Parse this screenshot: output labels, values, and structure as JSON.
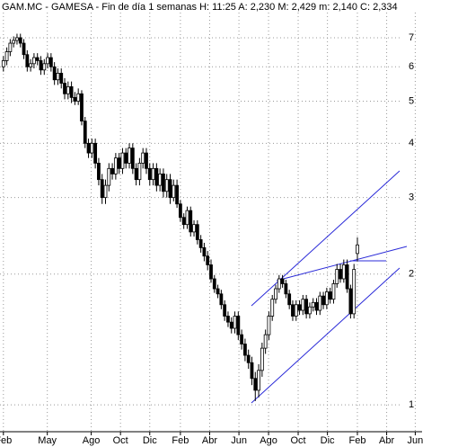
{
  "chart_data": {
    "type": "candlestick",
    "title": "GAM.MC - GAMESA - Fin de día 1 semanas  H: 11:25  A: 2,230  M: 2,429  m: 2,140  C: 2,334",
    "open": [
      6.0,
      6.2,
      6.5,
      6.8,
      6.9,
      7.0,
      6.8,
      6.4,
      6.0,
      6.1,
      6.3,
      6.2,
      5.9,
      6.1,
      6.3,
      6.0,
      5.6,
      5.8,
      5.5,
      5.2,
      5.4,
      5.1,
      5.0,
      5.2,
      4.5,
      4.0,
      3.8,
      4.0,
      3.6,
      3.3,
      3.0,
      3.2,
      3.5,
      3.4,
      3.7,
      3.5,
      3.8,
      3.6,
      3.9,
      3.5,
      3.3,
      3.6,
      3.8,
      3.5,
      3.3,
      3.5,
      3.2,
      3.4,
      3.1,
      3.3,
      3.0,
      3.2,
      2.9,
      2.7,
      2.6,
      2.8,
      2.5,
      2.6,
      2.4,
      2.3,
      2.2,
      2.1,
      1.95,
      1.85,
      1.8,
      1.7,
      1.6,
      1.55,
      1.5,
      1.6,
      1.45,
      1.38,
      1.3,
      1.25,
      1.15,
      1.08,
      1.2,
      1.35,
      1.45,
      1.6,
      1.75,
      1.85,
      1.95,
      1.9,
      1.8,
      1.7,
      1.6,
      1.7,
      1.65,
      1.75,
      1.62,
      1.68,
      1.72,
      1.65,
      1.78,
      1.7,
      1.82,
      1.75,
      1.9,
      2.05,
      1.95,
      2.1,
      1.85,
      1.62,
      2.23
    ],
    "high": [
      6.35,
      6.65,
      6.95,
      7.05,
      7.15,
      7.15,
      6.95,
      6.55,
      6.25,
      6.45,
      6.45,
      6.35,
      6.25,
      6.45,
      6.45,
      6.15,
      5.95,
      5.95,
      5.65,
      5.55,
      5.55,
      5.25,
      5.35,
      5.3,
      4.6,
      4.1,
      4.1,
      4.1,
      3.7,
      3.4,
      3.3,
      3.6,
      3.6,
      3.8,
      3.8,
      3.9,
      3.9,
      4.0,
      4.0,
      3.6,
      3.7,
      3.9,
      3.9,
      3.6,
      3.6,
      3.6,
      3.5,
      3.5,
      3.4,
      3.4,
      3.3,
      3.3,
      2.96,
      2.76,
      2.86,
      2.86,
      2.66,
      2.66,
      2.46,
      2.36,
      2.26,
      2.16,
      1.99,
      1.89,
      1.84,
      1.74,
      1.64,
      1.59,
      1.64,
      1.64,
      1.49,
      1.42,
      1.34,
      1.29,
      1.19,
      1.24,
      1.39,
      1.49,
      1.64,
      1.79,
      1.89,
      1.99,
      1.99,
      1.94,
      1.84,
      1.74,
      1.74,
      1.74,
      1.79,
      1.79,
      1.72,
      1.76,
      1.76,
      1.82,
      1.82,
      1.86,
      1.86,
      1.94,
      2.11,
      2.11,
      2.16,
      2.16,
      1.89,
      2.11,
      2.429
    ],
    "low": [
      5.85,
      6.05,
      6.35,
      6.65,
      6.75,
      6.65,
      6.25,
      5.85,
      5.85,
      5.95,
      6.05,
      5.75,
      5.75,
      5.95,
      5.85,
      5.45,
      5.45,
      5.35,
      5.05,
      5.05,
      4.95,
      4.9,
      4.9,
      4.4,
      3.9,
      3.7,
      3.7,
      3.5,
      3.2,
      2.9,
      2.9,
      3.1,
      3.3,
      3.3,
      3.4,
      3.4,
      3.5,
      3.5,
      3.4,
      3.2,
      3.2,
      3.5,
      3.4,
      3.2,
      3.2,
      3.1,
      3.1,
      3.0,
      3.0,
      2.9,
      2.94,
      2.84,
      2.64,
      2.54,
      2.54,
      2.44,
      2.44,
      2.34,
      2.24,
      2.14,
      2.04,
      1.91,
      1.81,
      1.76,
      1.66,
      1.56,
      1.51,
      1.46,
      1.46,
      1.41,
      1.34,
      1.26,
      1.21,
      1.11,
      1.02,
      1.04,
      1.16,
      1.31,
      1.41,
      1.56,
      1.71,
      1.81,
      1.86,
      1.76,
      1.66,
      1.56,
      1.56,
      1.61,
      1.61,
      1.58,
      1.58,
      1.64,
      1.61,
      1.61,
      1.66,
      1.66,
      1.71,
      1.71,
      1.86,
      1.91,
      1.91,
      1.81,
      1.58,
      1.58,
      2.14
    ],
    "close": [
      6.2,
      6.5,
      6.8,
      6.9,
      7.0,
      6.8,
      6.4,
      6.0,
      6.1,
      6.3,
      6.2,
      5.9,
      6.1,
      6.3,
      6.0,
      5.6,
      5.8,
      5.5,
      5.2,
      5.4,
      5.1,
      5.0,
      5.2,
      4.5,
      4.0,
      3.8,
      4.0,
      3.6,
      3.3,
      3.0,
      3.2,
      3.5,
      3.4,
      3.7,
      3.5,
      3.8,
      3.6,
      3.9,
      3.5,
      3.3,
      3.6,
      3.8,
      3.5,
      3.3,
      3.5,
      3.2,
      3.4,
      3.1,
      3.3,
      3.0,
      3.2,
      2.9,
      2.7,
      2.6,
      2.8,
      2.5,
      2.6,
      2.4,
      2.3,
      2.2,
      2.1,
      1.95,
      1.85,
      1.8,
      1.7,
      1.6,
      1.55,
      1.5,
      1.6,
      1.45,
      1.38,
      1.3,
      1.25,
      1.15,
      1.08,
      1.2,
      1.35,
      1.45,
      1.6,
      1.75,
      1.85,
      1.95,
      1.9,
      1.8,
      1.7,
      1.6,
      1.7,
      1.65,
      1.75,
      1.62,
      1.68,
      1.72,
      1.65,
      1.78,
      1.7,
      1.82,
      1.75,
      1.9,
      2.05,
      1.95,
      2.1,
      1.85,
      1.62,
      2.05,
      2.334
    ],
    "up_color": "#ffffff",
    "down_color": "#000000",
    "xlim": [
      -1,
      123
    ],
    "xticks": [
      {
        "value": 0,
        "label": "Feb"
      },
      {
        "value": 12.9,
        "label": "May"
      },
      {
        "value": 25.8,
        "label": "Ago"
      },
      {
        "value": 34.4,
        "label": "Oct"
      },
      {
        "value": 43,
        "label": "Dic"
      },
      {
        "value": 52,
        "label": "Feb"
      },
      {
        "value": 60.6,
        "label": "Abr"
      },
      {
        "value": 69.2,
        "label": "Jun"
      },
      {
        "value": 77.9,
        "label": "Ago"
      },
      {
        "value": 86.6,
        "label": "Oct"
      },
      {
        "value": 95.2,
        "label": "Dic"
      },
      {
        "value": 104,
        "label": "Feb"
      },
      {
        "value": 112.6,
        "label": "Abr"
      },
      {
        "value": 121,
        "label": "Jun"
      }
    ],
    "ylim": [
      0.867,
      8.55
    ],
    "yticks": [
      1,
      2,
      3,
      4,
      5,
      6,
      7
    ],
    "log_scale": true,
    "grid": true
  }
}
